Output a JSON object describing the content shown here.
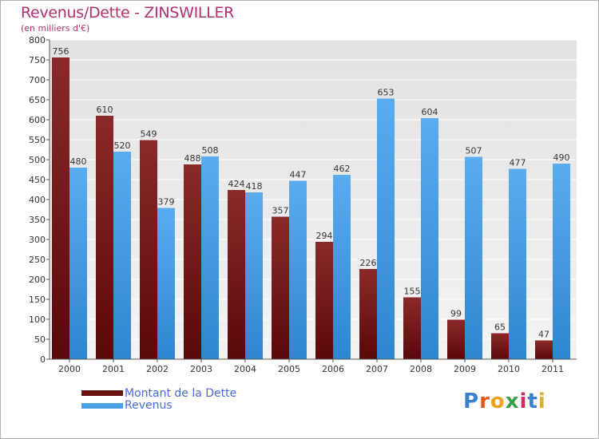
{
  "header": {
    "title": "Revenus/Dette - ZINSWILLER",
    "subtitle": "(en milliers d'€)"
  },
  "colors": {
    "debt": "#7a1a1a",
    "revenue": "#4aa0e6",
    "title": "#b03070",
    "legend_text": "#4a6ae0"
  },
  "legend": {
    "debt_label": "Montant de la Dette",
    "revenue_label": "Revenus"
  },
  "logo": {
    "text": "Proxiti"
  },
  "chart_data": {
    "type": "bar",
    "title": "Revenus/Dette - ZINSWILLER",
    "subtitle": "(en milliers d'€)",
    "categories": [
      "2000",
      "2001",
      "2002",
      "2003",
      "2004",
      "2005",
      "2006",
      "2007",
      "2008",
      "2009",
      "2010",
      "2011"
    ],
    "series": [
      {
        "name": "Montant de la Dette",
        "values": [
          756,
          610,
          549,
          488,
          424,
          357,
          294,
          226,
          155,
          99,
          65,
          47
        ]
      },
      {
        "name": "Revenus",
        "values": [
          480,
          520,
          379,
          508,
          418,
          447,
          462,
          653,
          604,
          507,
          477,
          490
        ]
      }
    ],
    "ylim": [
      0,
      800
    ],
    "yticks": [
      0,
      50,
      100,
      150,
      200,
      250,
      300,
      350,
      400,
      450,
      500,
      550,
      600,
      650,
      700,
      750,
      800
    ],
    "grid": true,
    "legend_position": "bottom-left"
  }
}
